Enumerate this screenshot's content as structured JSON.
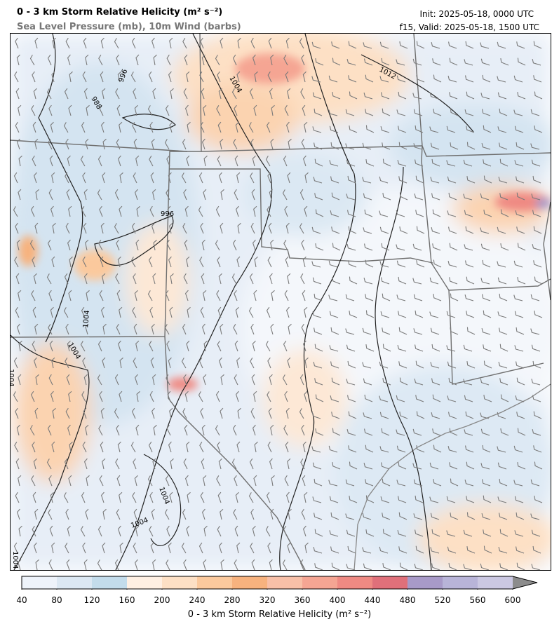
{
  "header": {
    "title": "0 - 3 km Storm Relative Helicity (m² s⁻²)",
    "subtitle": "Sea Level Pressure (mb), 10m Wind (barbs)",
    "init": "Init: 2025-05-18, 0000 UTC",
    "valid": "f15, Valid: 2025-05-18, 1500 UTC"
  },
  "map": {
    "isobar_labels": [
      "996",
      "988",
      "1004",
      "1012",
      "996",
      "1004",
      "1004",
      "1004",
      "1004",
      "1004",
      "1004"
    ]
  },
  "colorbar": {
    "label": "0 - 3 km Storm Relative Helicity (m² s⁻²)",
    "ticks": [
      "40",
      "80",
      "120",
      "160",
      "200",
      "240",
      "280",
      "320",
      "360",
      "400",
      "440",
      "480",
      "520",
      "560",
      "600"
    ],
    "colors": [
      "#eef3fa",
      "#dce8f3",
      "#c3dceb",
      "#fff0e3",
      "#fde0c5",
      "#fbc99d",
      "#f7b27e",
      "#f8c0a8",
      "#f5a593",
      "#ef8a83",
      "#e0707a",
      "#a89ac8",
      "#b8b4d8",
      "#cbc8e2"
    ],
    "extend_color": "#8c8c8c"
  }
}
